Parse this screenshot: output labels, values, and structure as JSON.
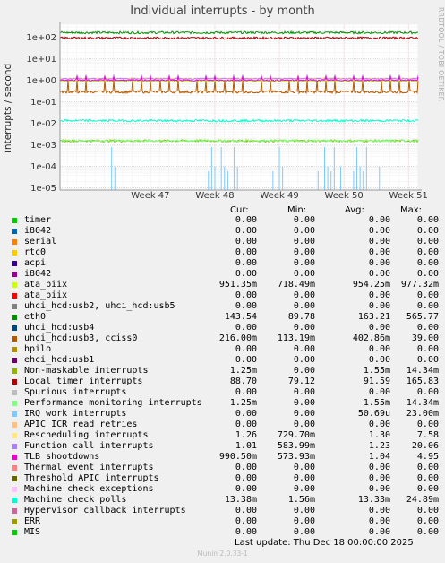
{
  "title": "Individual interrupts - by month",
  "side_label": "RRDTOOL / TOBI OETIKER",
  "ylabel": "interrupts / second",
  "legend_header": {
    "cur": "Cur:",
    "min": "Min:",
    "avg": "Avg:",
    "max": "Max:"
  },
  "last_update": "Last update:  Thu Dec 18 00:00:00 2025",
  "footer": "Munin 2.0.33-1",
  "chart_data": {
    "type": "line",
    "title": "Individual interrupts - by month",
    "ylabel": "interrupts / second",
    "y_scale": "log",
    "ylim": [
      8e-06,
      400
    ],
    "y_ticks": [
      {
        "label": "1e+02",
        "value": 100
      },
      {
        "label": "1e+01",
        "value": 10
      },
      {
        "label": "1e+00",
        "value": 1
      },
      {
        "label": "1e-01",
        "value": 0.1
      },
      {
        "label": "1e-02",
        "value": 0.01
      },
      {
        "label": "1e-03",
        "value": 0.001
      },
      {
        "label": "1e-04",
        "value": 0.0001
      },
      {
        "label": "1e-05",
        "value": 1e-05
      }
    ],
    "x_ticks": [
      "Week 47",
      "Week 48",
      "Week 49",
      "Week 50",
      "Week 51"
    ],
    "x_range_weeks": [
      45.6,
      51.15
    ],
    "grid": true,
    "series": [
      {
        "name": "timer",
        "color": "#00cc00",
        "cur": "0.00",
        "min": "0.00",
        "avg": "0.00",
        "max": "0.00"
      },
      {
        "name": "i8042",
        "color": "#0066b3",
        "cur": "0.00",
        "min": "0.00",
        "avg": "0.00",
        "max": "0.00"
      },
      {
        "name": "serial",
        "color": "#ff8000",
        "cur": "0.00",
        "min": "0.00",
        "avg": "0.00",
        "max": "0.00"
      },
      {
        "name": "rtc0",
        "color": "#ffcc00",
        "cur": "0.00",
        "min": "0.00",
        "avg": "0.00",
        "max": "0.00"
      },
      {
        "name": "acpi",
        "color": "#330099",
        "cur": "0.00",
        "min": "0.00",
        "avg": "0.00",
        "max": "0.00"
      },
      {
        "name": "i8042",
        "color": "#990099",
        "cur": "0.00",
        "min": "0.00",
        "avg": "0.00",
        "max": "0.00"
      },
      {
        "name": "ata_piix",
        "color": "#ccff00",
        "cur": "951.35m",
        "min": "718.49m",
        "avg": "954.25m",
        "max": "977.32m"
      },
      {
        "name": "ata_piix",
        "color": "#ff0000",
        "cur": "0.00",
        "min": "0.00",
        "avg": "0.00",
        "max": "0.00"
      },
      {
        "name": "uhci_hcd:usb2, uhci_hcd:usb5",
        "color": "#808080",
        "cur": "0.00",
        "min": "0.00",
        "avg": "0.00",
        "max": "0.00"
      },
      {
        "name": "eth0",
        "color": "#008f00",
        "cur": "143.54",
        "min": "89.78",
        "avg": "163.21",
        "max": "565.77"
      },
      {
        "name": "uhci_hcd:usb4",
        "color": "#00487d",
        "cur": "0.00",
        "min": "0.00",
        "avg": "0.00",
        "max": "0.00"
      },
      {
        "name": "uhci_hcd:usb3, cciss0",
        "color": "#b35a00",
        "cur": "216.00m",
        "min": "113.19m",
        "avg": "402.86m",
        "max": "39.00"
      },
      {
        "name": "hpilo",
        "color": "#b38f00",
        "cur": "0.00",
        "min": "0.00",
        "avg": "0.00",
        "max": "0.00"
      },
      {
        "name": "ehci_hcd:usb1",
        "color": "#6b006b",
        "cur": "0.00",
        "min": "0.00",
        "avg": "0.00",
        "max": "0.00"
      },
      {
        "name": "Non-maskable interrupts",
        "color": "#8fb300",
        "cur": "1.25m",
        "min": "0.00",
        "avg": "1.55m",
        "max": "14.34m"
      },
      {
        "name": "Local timer interrupts",
        "color": "#b30000",
        "cur": "88.70",
        "min": "79.12",
        "avg": "91.59",
        "max": "165.83"
      },
      {
        "name": "Spurious interrupts",
        "color": "#bebebe",
        "cur": "0.00",
        "min": "0.00",
        "avg": "0.00",
        "max": "0.00"
      },
      {
        "name": "Performance monitoring interrupts",
        "color": "#80ff80",
        "cur": "1.25m",
        "min": "0.00",
        "avg": "1.55m",
        "max": "14.34m"
      },
      {
        "name": "IRQ work interrupts",
        "color": "#80c9ff",
        "cur": "0.00",
        "min": "0.00",
        "avg": "50.69u",
        "max": "23.00m"
      },
      {
        "name": "APIC ICR read retries",
        "color": "#ffc080",
        "cur": "0.00",
        "min": "0.00",
        "avg": "0.00",
        "max": "0.00"
      },
      {
        "name": "Rescheduling interrupts",
        "color": "#ffe680",
        "cur": "1.26",
        "min": "729.70m",
        "avg": "1.30",
        "max": "7.58"
      },
      {
        "name": "Function call interrupts",
        "color": "#aa80ff",
        "cur": "1.01",
        "min": "583.99m",
        "avg": "1.23",
        "max": "20.06"
      },
      {
        "name": "TLB shootdowns",
        "color": "#ee00cc",
        "cur": "990.50m",
        "min": "573.93m",
        "avg": "1.04",
        "max": "4.95"
      },
      {
        "name": "Thermal event interrupts",
        "color": "#ff8080",
        "cur": "0.00",
        "min": "0.00",
        "avg": "0.00",
        "max": "0.00"
      },
      {
        "name": "Threshold APIC interrupts",
        "color": "#666600",
        "cur": "0.00",
        "min": "0.00",
        "avg": "0.00",
        "max": "0.00"
      },
      {
        "name": "Machine check exceptions",
        "color": "#ffbfff",
        "cur": "0.00",
        "min": "0.00",
        "avg": "0.00",
        "max": "0.00"
      },
      {
        "name": "Machine check polls",
        "color": "#00ffcc",
        "cur": "13.38m",
        "min": "1.56m",
        "avg": "13.33m",
        "max": "24.89m"
      },
      {
        "name": "Hypervisor callback interrupts",
        "color": "#cc6699",
        "cur": "0.00",
        "min": "0.00",
        "avg": "0.00",
        "max": "0.00"
      },
      {
        "name": "ERR",
        "color": "#999900",
        "cur": "0.00",
        "min": "0.00",
        "avg": "0.00",
        "max": "0.00"
      },
      {
        "name": "MIS",
        "color": "#00cc00",
        "cur": "0.00",
        "min": "0.00",
        "avg": "0.00",
        "max": "0.00"
      }
    ]
  }
}
